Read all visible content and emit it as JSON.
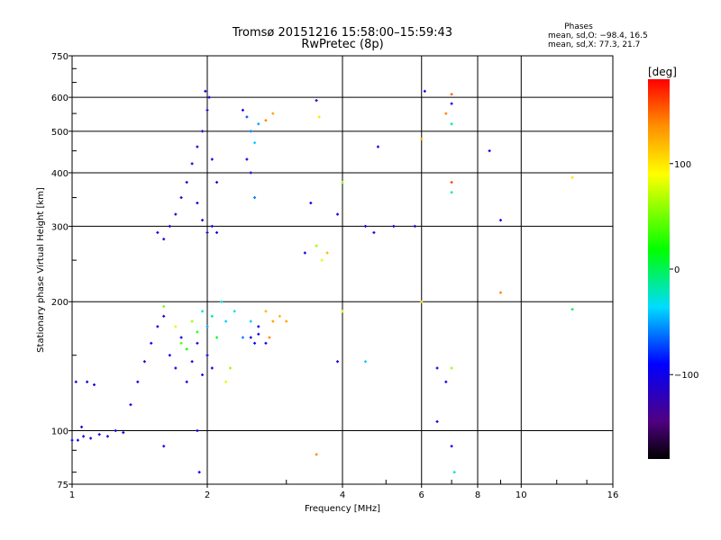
{
  "chart_data": {
    "type": "scatter",
    "title": "Tromsø 20151216 15:58:00–15:59:43",
    "subtitle": "RwPretec (8p)",
    "xlabel": "Frequency [MHz]",
    "ylabel": "Stationary phase Virtual Height [km]",
    "x_scale": "log",
    "y_scale": "log",
    "xlim": [
      1,
      16
    ],
    "ylim": [
      75,
      750
    ],
    "x_ticks": [
      1,
      2,
      4,
      6,
      8,
      10,
      16
    ],
    "x_tick_labels": [
      "1",
      "2",
      "4",
      "6",
      "8",
      "10",
      "16"
    ],
    "y_ticks": [
      75,
      100,
      200,
      300,
      400,
      500,
      600,
      750
    ],
    "y_tick_labels": [
      "75",
      "100",
      "200",
      "300",
      "400",
      "500",
      "600",
      "750"
    ],
    "grid": true,
    "stats": {
      "heading": "Phases",
      "line_o": "mean, sd,O: −98.4, 16.5",
      "line_x": "mean, sd,X:  77.3, 21.7"
    },
    "colorbar": {
      "label": "[deg]",
      "range": [
        -180,
        180
      ],
      "ticks": [
        100,
        0,
        -100
      ],
      "tick_labels": [
        "100",
        "0",
        "−100"
      ]
    },
    "series": [
      {
        "points": [
          [
            1.0,
            95,
            -100
          ],
          [
            1.03,
            95,
            -100
          ],
          [
            1.06,
            97,
            -110
          ],
          [
            1.1,
            96,
            -100
          ],
          [
            1.15,
            98,
            -100
          ],
          [
            1.2,
            97,
            -110
          ],
          [
            1.25,
            100,
            -100
          ],
          [
            1.3,
            99,
            -100
          ],
          [
            1.05,
            102,
            -110
          ],
          [
            1.08,
            130,
            -100
          ],
          [
            1.12,
            128,
            -100
          ],
          [
            1.02,
            130,
            -110
          ],
          [
            1.35,
            115,
            -100
          ],
          [
            1.4,
            130,
            -100
          ],
          [
            1.45,
            145,
            -110
          ],
          [
            1.5,
            160,
            -100
          ],
          [
            1.55,
            175,
            -100
          ],
          [
            1.6,
            185,
            -110
          ],
          [
            1.65,
            150,
            -100
          ],
          [
            1.7,
            140,
            -100
          ],
          [
            1.75,
            165,
            -110
          ],
          [
            1.8,
            130,
            -100
          ],
          [
            1.85,
            145,
            -100
          ],
          [
            1.9,
            160,
            -110
          ],
          [
            1.95,
            135,
            -100
          ],
          [
            2.0,
            150,
            -110
          ],
          [
            2.05,
            140,
            -100
          ],
          [
            1.6,
            195,
            50
          ],
          [
            1.7,
            175,
            80
          ],
          [
            1.75,
            160,
            40
          ],
          [
            1.8,
            155,
            20
          ],
          [
            1.85,
            180,
            60
          ],
          [
            1.9,
            170,
            30
          ],
          [
            1.95,
            190,
            -30
          ],
          [
            2.0,
            175,
            -50
          ],
          [
            2.05,
            185,
            -20
          ],
          [
            2.1,
            165,
            10
          ],
          [
            2.15,
            200,
            -30
          ],
          [
            2.2,
            180,
            -40
          ],
          [
            2.3,
            190,
            -30
          ],
          [
            2.4,
            165,
            -60
          ],
          [
            2.5,
            180,
            -40
          ],
          [
            2.55,
            160,
            -100
          ],
          [
            2.6,
            175,
            -100
          ],
          [
            2.7,
            190,
            120
          ],
          [
            2.8,
            180,
            130
          ],
          [
            2.9,
            185,
            120
          ],
          [
            3.0,
            180,
            130
          ],
          [
            2.75,
            165,
            140
          ],
          [
            1.55,
            290,
            -100
          ],
          [
            1.6,
            280,
            -110
          ],
          [
            1.65,
            300,
            -100
          ],
          [
            1.7,
            320,
            -100
          ],
          [
            1.75,
            350,
            -110
          ],
          [
            1.8,
            380,
            -100
          ],
          [
            1.85,
            420,
            -100
          ],
          [
            1.9,
            460,
            -110
          ],
          [
            1.95,
            500,
            -100
          ],
          [
            2.0,
            560,
            -110
          ],
          [
            1.98,
            620,
            -100
          ],
          [
            2.02,
            600,
            -100
          ],
          [
            2.05,
            430,
            -100
          ],
          [
            2.1,
            380,
            -110
          ],
          [
            1.9,
            340,
            -100
          ],
          [
            1.95,
            310,
            -100
          ],
          [
            2.0,
            290,
            -110
          ],
          [
            2.05,
            300,
            -100
          ],
          [
            2.1,
            290,
            -100
          ],
          [
            2.4,
            560,
            -100
          ],
          [
            2.45,
            540,
            -70
          ],
          [
            2.5,
            500,
            -60
          ],
          [
            2.55,
            470,
            -40
          ],
          [
            2.45,
            430,
            -100
          ],
          [
            2.5,
            400,
            -100
          ],
          [
            2.55,
            350,
            -60
          ],
          [
            2.6,
            520,
            -50
          ],
          [
            2.7,
            530,
            140
          ],
          [
            2.8,
            550,
            130
          ],
          [
            3.5,
            590,
            -110
          ],
          [
            3.55,
            540,
            100
          ],
          [
            3.4,
            340,
            -100
          ],
          [
            3.9,
            320,
            -100
          ],
          [
            4.0,
            380,
            60
          ],
          [
            3.5,
            270,
            60
          ],
          [
            3.6,
            250,
            80
          ],
          [
            3.3,
            260,
            -100
          ],
          [
            3.7,
            260,
            120
          ],
          [
            4.5,
            300,
            -100
          ],
          [
            4.7,
            290,
            -100
          ],
          [
            5.2,
            300,
            -100
          ],
          [
            5.8,
            300,
            -110
          ],
          [
            4.8,
            460,
            -100
          ],
          [
            6.0,
            480,
            120
          ],
          [
            6.1,
            620,
            -100
          ],
          [
            6.8,
            550,
            140
          ],
          [
            7.0,
            580,
            -100
          ],
          [
            7.0,
            610,
            150
          ],
          [
            7.0,
            520,
            -10
          ],
          [
            7.0,
            380,
            160
          ],
          [
            7.0,
            360,
            -20
          ],
          [
            8.5,
            450,
            -100
          ],
          [
            9.0,
            310,
            -100
          ],
          [
            13.0,
            390,
            100
          ],
          [
            9.0,
            210,
            140
          ],
          [
            13.0,
            192,
            0
          ],
          [
            6.0,
            200,
            100
          ],
          [
            6.5,
            140,
            -100
          ],
          [
            6.8,
            130,
            -100
          ],
          [
            7.0,
            140,
            60
          ],
          [
            6.5,
            105,
            -100
          ],
          [
            7.0,
            92,
            -100
          ],
          [
            7.1,
            80,
            -30
          ],
          [
            3.5,
            88,
            140
          ],
          [
            3.9,
            145,
            -100
          ],
          [
            4.5,
            145,
            -40
          ],
          [
            4.0,
            190,
            80
          ],
          [
            1.6,
            92,
            -100
          ],
          [
            1.9,
            100,
            -100
          ],
          [
            1.92,
            80,
            -100
          ],
          [
            2.5,
            165,
            -100
          ],
          [
            2.6,
            168,
            -100
          ],
          [
            2.7,
            160,
            -100
          ],
          [
            2.25,
            140,
            60
          ],
          [
            2.2,
            130,
            80
          ]
        ]
      }
    ]
  }
}
